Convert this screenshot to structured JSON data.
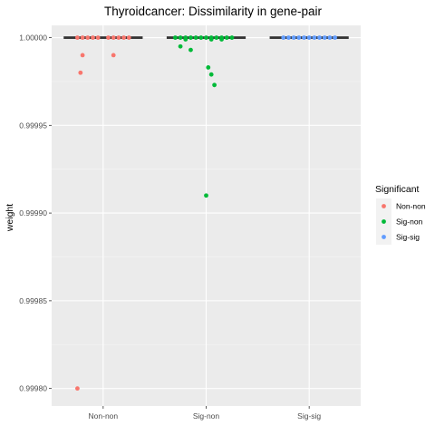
{
  "chart_data": {
    "type": "boxplot",
    "title": "Thyroidcancer: Dissimilarity in gene-pair",
    "xlabel": "",
    "ylabel": "weight",
    "categories": [
      "Non-non",
      "Sig-non",
      "Sig-sig"
    ],
    "ylim": [
      0.99979,
      1.000007
    ],
    "yticks": [
      1.0,
      0.99995,
      0.9999,
      0.99985,
      0.9998
    ],
    "ytick_labels": [
      "1.00000",
      "0.99995",
      "0.99990",
      "0.99985",
      "0.99980"
    ],
    "grid": true,
    "legend": {
      "title": "Significant",
      "position": "right",
      "entries": [
        {
          "label": "Non-non",
          "color": "#F8766D"
        },
        {
          "label": "Sig-non",
          "color": "#00BA38"
        },
        {
          "label": "Sig-sig",
          "color": "#619CFF"
        }
      ]
    },
    "boxes": [
      {
        "category": "Non-non",
        "median": 1.0,
        "q1": 1.0,
        "q3": 1.0
      },
      {
        "category": "Sig-non",
        "median": 1.0,
        "q1": 1.0,
        "q3": 1.0
      },
      {
        "category": "Sig-sig",
        "median": 1.0,
        "q1": 1.0,
        "q3": 1.0
      }
    ],
    "points": [
      {
        "category": "Non-non",
        "jitter": -0.25,
        "y": 1.0
      },
      {
        "category": "Non-non",
        "jitter": -0.2,
        "y": 1.0
      },
      {
        "category": "Non-non",
        "jitter": -0.15,
        "y": 1.0
      },
      {
        "category": "Non-non",
        "jitter": -0.1,
        "y": 1.0
      },
      {
        "category": "Non-non",
        "jitter": -0.05,
        "y": 1.0
      },
      {
        "category": "Non-non",
        "jitter": 0.05,
        "y": 1.0
      },
      {
        "category": "Non-non",
        "jitter": 0.1,
        "y": 1.0
      },
      {
        "category": "Non-non",
        "jitter": 0.15,
        "y": 1.0
      },
      {
        "category": "Non-non",
        "jitter": 0.2,
        "y": 1.0
      },
      {
        "category": "Non-non",
        "jitter": 0.25,
        "y": 1.0
      },
      {
        "category": "Non-non",
        "jitter": -0.2,
        "y": 0.99999
      },
      {
        "category": "Non-non",
        "jitter": 0.1,
        "y": 0.99999
      },
      {
        "category": "Non-non",
        "jitter": -0.22,
        "y": 0.99998
      },
      {
        "category": "Non-non",
        "jitter": -0.25,
        "y": 0.9998
      },
      {
        "category": "Sig-non",
        "jitter": -0.3,
        "y": 1.0
      },
      {
        "category": "Sig-non",
        "jitter": -0.25,
        "y": 1.0
      },
      {
        "category": "Sig-non",
        "jitter": -0.2,
        "y": 1.0
      },
      {
        "category": "Sig-non",
        "jitter": -0.15,
        "y": 1.0
      },
      {
        "category": "Sig-non",
        "jitter": -0.1,
        "y": 1.0
      },
      {
        "category": "Sig-non",
        "jitter": -0.05,
        "y": 1.0
      },
      {
        "category": "Sig-non",
        "jitter": 0.0,
        "y": 1.0
      },
      {
        "category": "Sig-non",
        "jitter": 0.05,
        "y": 1.0
      },
      {
        "category": "Sig-non",
        "jitter": 0.1,
        "y": 1.0
      },
      {
        "category": "Sig-non",
        "jitter": 0.15,
        "y": 1.0
      },
      {
        "category": "Sig-non",
        "jitter": 0.2,
        "y": 1.0
      },
      {
        "category": "Sig-non",
        "jitter": 0.25,
        "y": 1.0
      },
      {
        "category": "Sig-non",
        "jitter": -0.2,
        "y": 0.999999
      },
      {
        "category": "Sig-non",
        "jitter": 0.05,
        "y": 0.999999
      },
      {
        "category": "Sig-non",
        "jitter": 0.15,
        "y": 0.999999
      },
      {
        "category": "Sig-non",
        "jitter": -0.25,
        "y": 0.999995
      },
      {
        "category": "Sig-non",
        "jitter": -0.15,
        "y": 0.999993
      },
      {
        "category": "Sig-non",
        "jitter": 0.02,
        "y": 0.999983
      },
      {
        "category": "Sig-non",
        "jitter": 0.05,
        "y": 0.999979
      },
      {
        "category": "Sig-non",
        "jitter": 0.08,
        "y": 0.999973
      },
      {
        "category": "Sig-non",
        "jitter": 0.0,
        "y": 0.99991
      },
      {
        "category": "Sig-sig",
        "jitter": -0.25,
        "y": 1.0
      },
      {
        "category": "Sig-sig",
        "jitter": -0.2,
        "y": 1.0
      },
      {
        "category": "Sig-sig",
        "jitter": -0.15,
        "y": 1.0
      },
      {
        "category": "Sig-sig",
        "jitter": -0.1,
        "y": 1.0
      },
      {
        "category": "Sig-sig",
        "jitter": -0.05,
        "y": 1.0
      },
      {
        "category": "Sig-sig",
        "jitter": 0.0,
        "y": 1.0
      },
      {
        "category": "Sig-sig",
        "jitter": 0.05,
        "y": 1.0
      },
      {
        "category": "Sig-sig",
        "jitter": 0.1,
        "y": 1.0
      },
      {
        "category": "Sig-sig",
        "jitter": 0.15,
        "y": 1.0
      },
      {
        "category": "Sig-sig",
        "jitter": 0.2,
        "y": 1.0
      },
      {
        "category": "Sig-sig",
        "jitter": 0.25,
        "y": 1.0
      }
    ]
  }
}
